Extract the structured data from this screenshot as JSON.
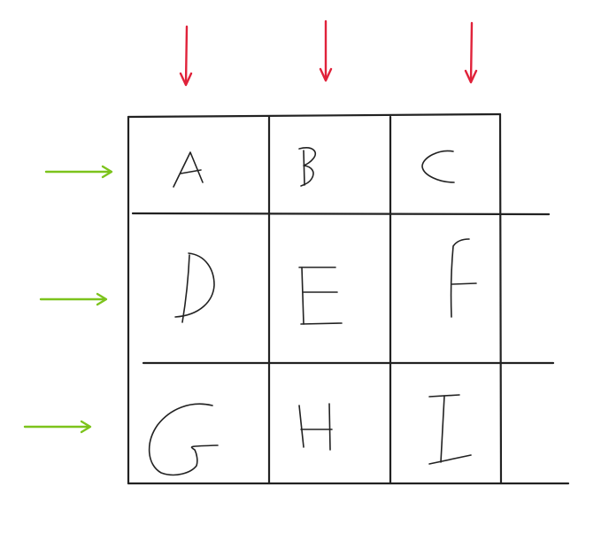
{
  "diagram": {
    "title": "",
    "grid": {
      "rows": 3,
      "columns": 3,
      "cells": [
        [
          "A",
          "B",
          "C"
        ],
        [
          "D",
          "E",
          "F"
        ],
        [
          "G",
          "H",
          "I"
        ]
      ]
    },
    "column_markers": {
      "count": 3,
      "direction": "down",
      "color": "#e0223a"
    },
    "row_markers": {
      "count": 3,
      "direction": "right",
      "color": "#7cc31c"
    },
    "colors": {
      "ink": "#222222",
      "background": "#ffffff"
    }
  }
}
